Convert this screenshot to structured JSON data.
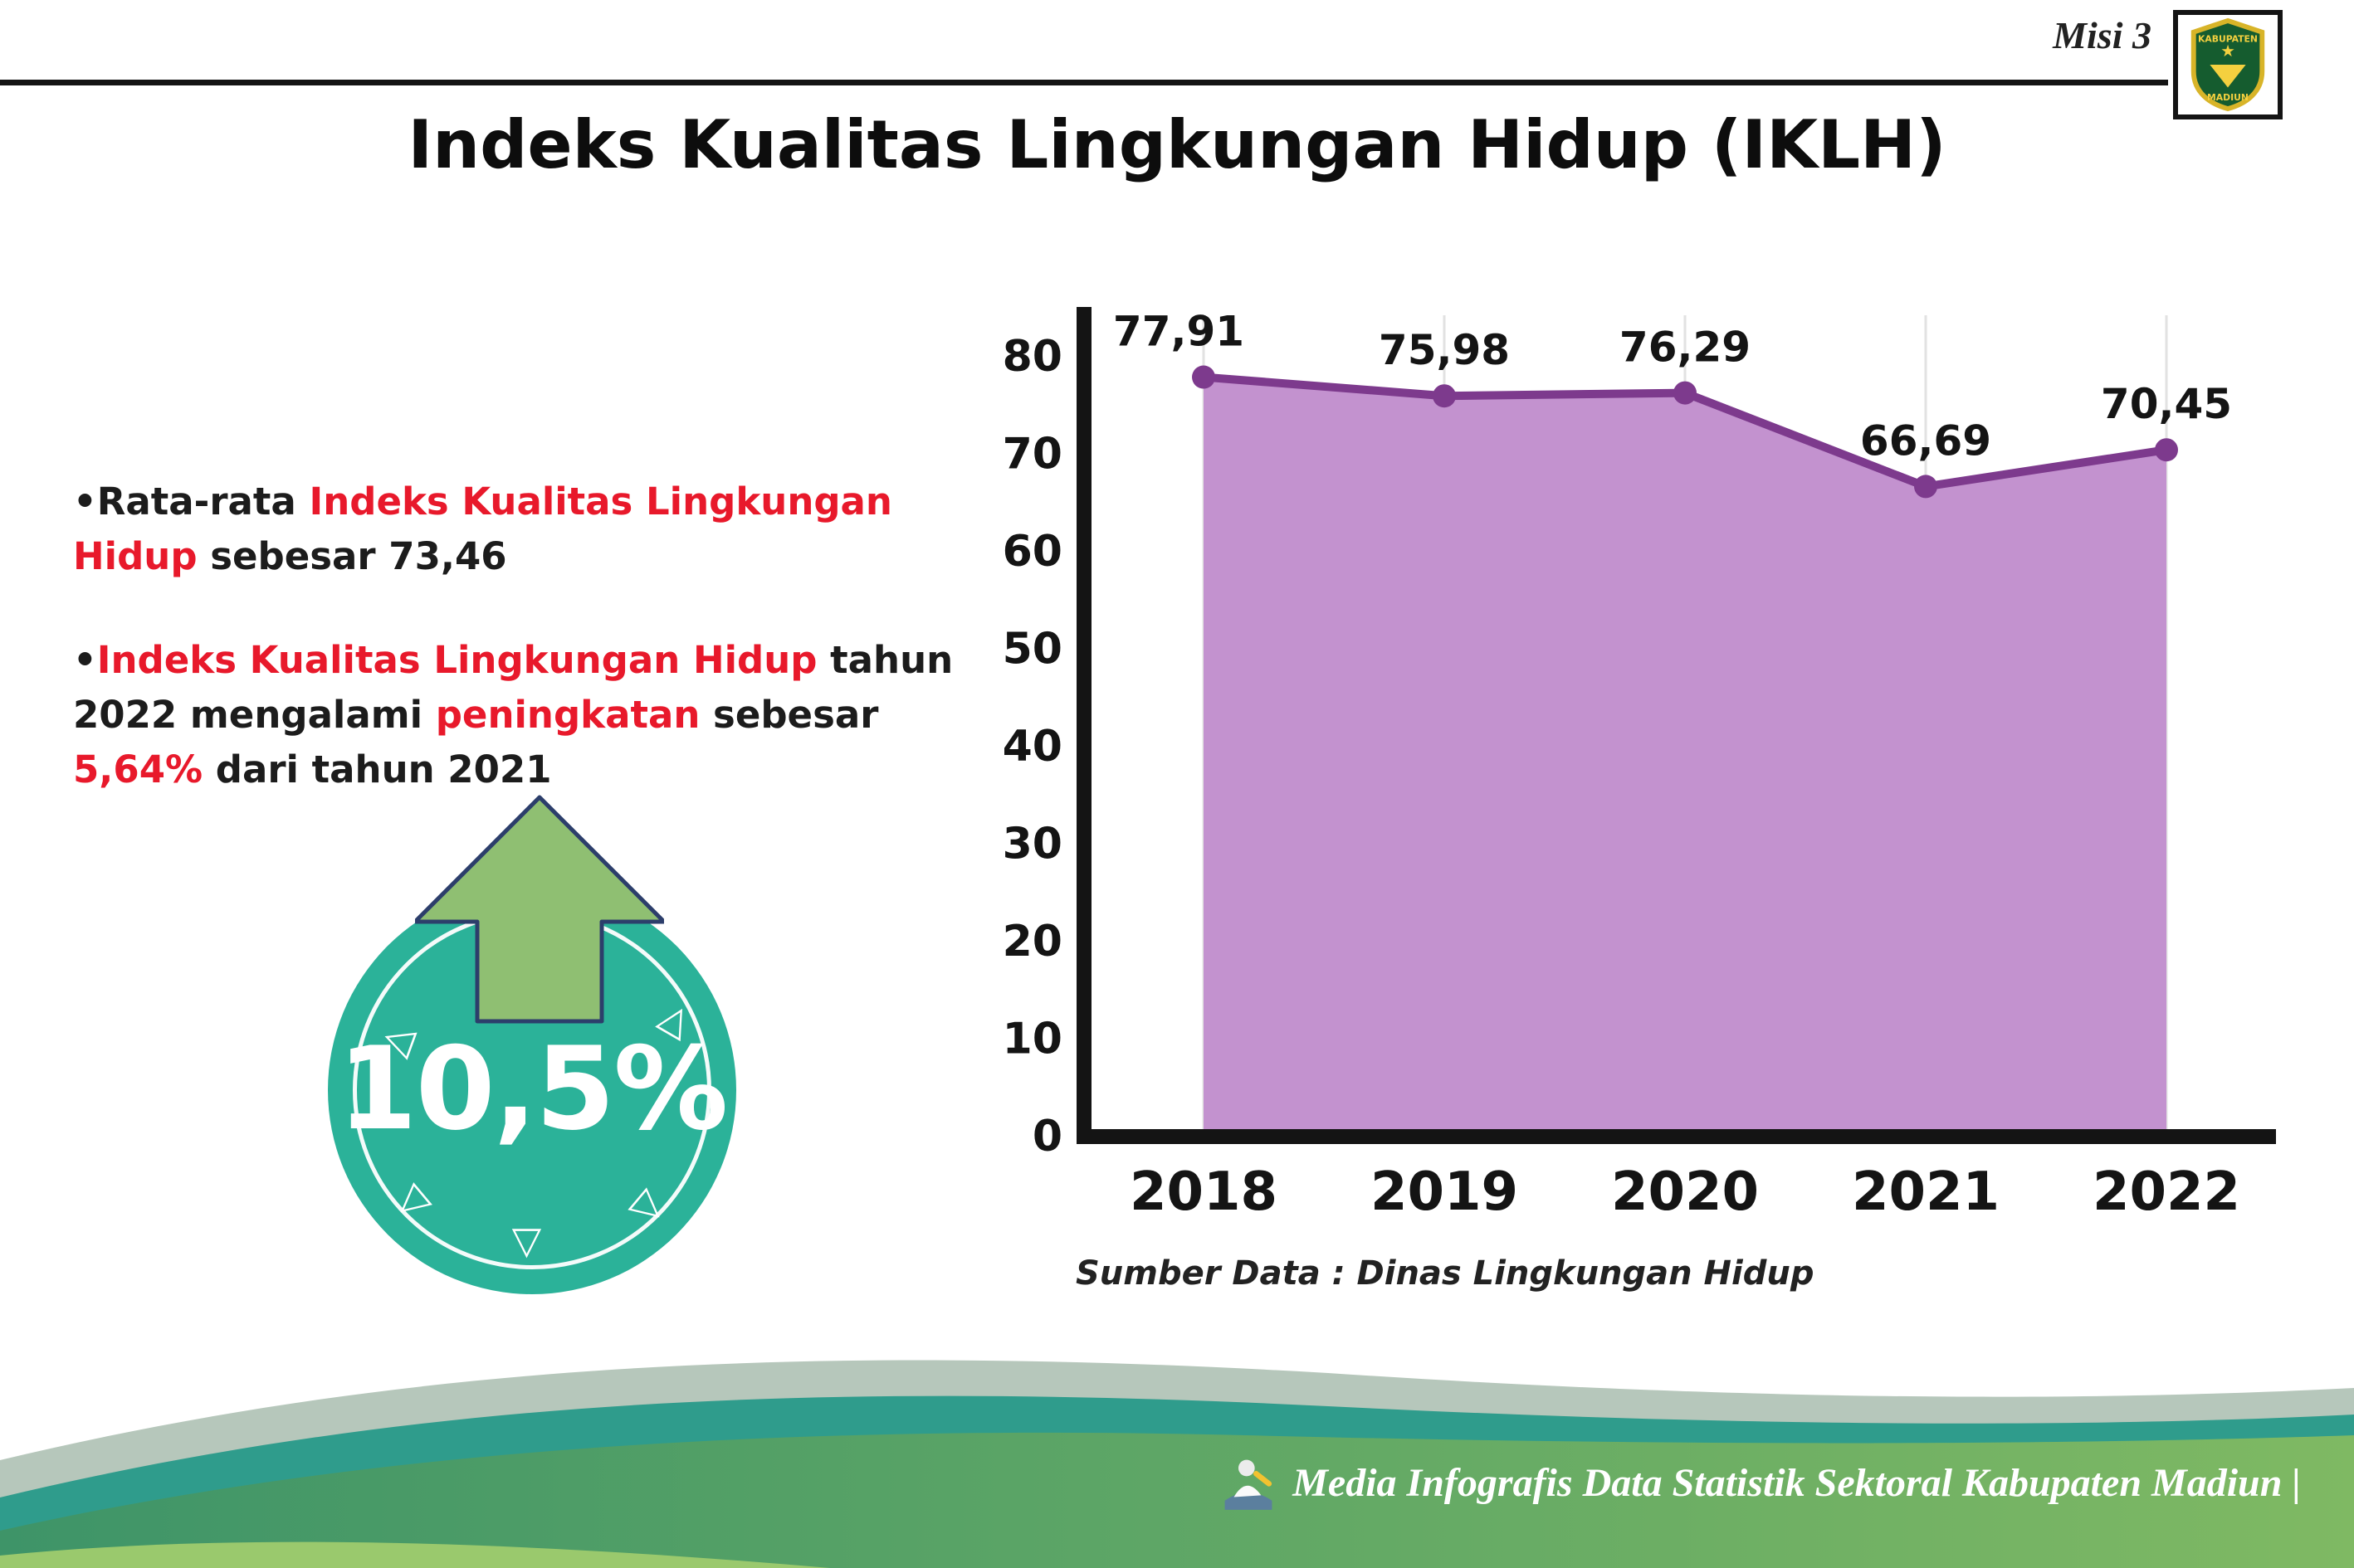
{
  "colors": {
    "accent_red": "#e8192b",
    "badge_teal": "#2bb299",
    "arrow_green": "#8fbf72",
    "area_fill": "#c392cf",
    "area_line": "#7d3a8d",
    "footer_green": "#5aa665"
  },
  "header": {
    "misi_label": "Misi 3",
    "title": "Indeks Kualitas Lingkungan Hidup (IKLH)",
    "logo_top": "KABUPATEN",
    "logo_bottom": "MADIUN"
  },
  "bullets": [
    {
      "marker": "•",
      "segments": [
        {
          "text": "Rata-rata ",
          "style": "normal"
        },
        {
          "text": "Indeks Kualitas Lingkungan Hidup",
          "style": "red"
        },
        {
          "text": " sebesar 73,46",
          "style": "normal"
        }
      ]
    },
    {
      "marker": "•",
      "segments": [
        {
          "text": "Indeks Kualitas Lingkungan Hidup",
          "style": "red"
        },
        {
          "text": " tahun 2022 mengalami ",
          "style": "normal"
        },
        {
          "text": "peningkatan",
          "style": "red"
        },
        {
          "text": " sebesar ",
          "style": "normal"
        },
        {
          "text": "5,64%",
          "style": "red"
        },
        {
          "text": " dari tahun 2021",
          "style": "normal"
        }
      ]
    }
  ],
  "badge": {
    "value": "10,5%"
  },
  "chart_data": {
    "type": "area",
    "title": "",
    "categories": [
      "2018",
      "2019",
      "2020",
      "2021",
      "2022"
    ],
    "values": [
      77.91,
      75.98,
      76.29,
      66.69,
      70.45
    ],
    "value_labels": [
      "77,91",
      "75,98",
      "76,29",
      "66,69",
      "70,45"
    ],
    "ylim": [
      0,
      80
    ],
    "yticks": [
      0,
      10,
      20,
      30,
      40,
      50,
      60,
      70,
      80
    ],
    "grid": "light-vertical",
    "legend": "none",
    "fill_color": "#c392cf",
    "line_color": "#7d3a8d"
  },
  "source_note": "Sumber Data : Dinas Lingkungan Hidup",
  "footer": {
    "credit": "Media Infografis Data Statistik Sektoral Kabupaten Madiun |"
  }
}
